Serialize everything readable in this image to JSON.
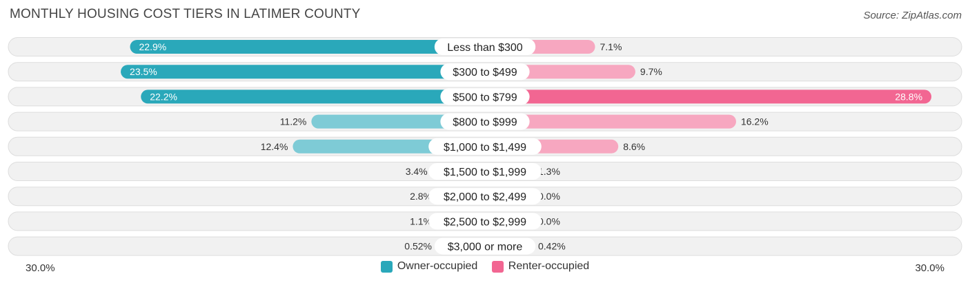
{
  "chart_data": {
    "type": "bar",
    "orientation": "diverging-horizontal",
    "title": "MONTHLY HOUSING COST TIERS IN LATIMER COUNTY",
    "source": "Source: ZipAtlas.com",
    "categories": [
      "Less than $300",
      "$300 to $499",
      "$500 to $799",
      "$800 to $999",
      "$1,000 to $1,499",
      "$1,500 to $1,999",
      "$2,000 to $2,499",
      "$2,500 to $2,999",
      "$3,000 or more"
    ],
    "series": [
      {
        "name": "Owner-occupied",
        "values": [
          22.9,
          23.5,
          22.2,
          11.2,
          12.4,
          3.4,
          2.8,
          1.1,
          0.52
        ],
        "labels": [
          "22.9%",
          "23.5%",
          "22.2%",
          "11.2%",
          "12.4%",
          "3.4%",
          "2.8%",
          "1.1%",
          "0.52%"
        ]
      },
      {
        "name": "Renter-occupied",
        "values": [
          7.1,
          9.7,
          28.8,
          16.2,
          8.6,
          1.3,
          0.0,
          0.0,
          0.42
        ],
        "labels": [
          "7.1%",
          "9.7%",
          "28.8%",
          "16.2%",
          "8.6%",
          "1.3%",
          "0.0%",
          "0.0%",
          "0.42%"
        ]
      }
    ],
    "xlim": [
      -30,
      30
    ],
    "axis_left_label": "30.0%",
    "axis_right_label": "30.0%",
    "legend_position": "bottom-center"
  },
  "colors": {
    "owner_strong": "#2aa8ba",
    "owner_light": "#7ecbd6",
    "renter_strong": "#f26692",
    "renter_light": "#f7a7c0",
    "track": "#f1f1f1",
    "track_border": "#dddddd"
  }
}
